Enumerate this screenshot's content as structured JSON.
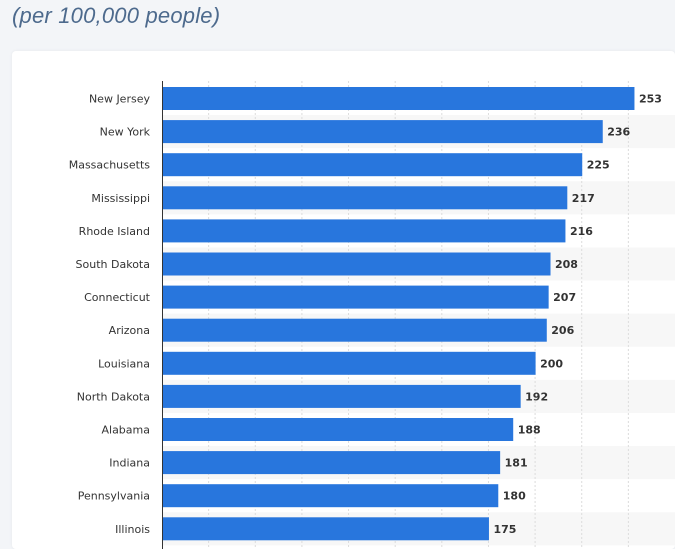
{
  "header": {
    "subtitle": "(per 100,000 people)"
  },
  "chart_data": {
    "type": "bar",
    "orientation": "horizontal",
    "title": "",
    "subtitle": "(per 100,000 people)",
    "xlabel": "",
    "ylabel": "",
    "xlim": [
      0,
      275
    ],
    "grid": true,
    "categories": [
      "New Jersey",
      "New York",
      "Massachusetts",
      "Mississippi",
      "Rhode Island",
      "South Dakota",
      "Connecticut",
      "Arizona",
      "Louisiana",
      "North Dakota",
      "Alabama",
      "Indiana",
      "Pennsylvania",
      "Illinois"
    ],
    "values": [
      253,
      236,
      225,
      217,
      216,
      208,
      207,
      206,
      200,
      192,
      188,
      181,
      180,
      175
    ],
    "bar_color": "#2876dd"
  }
}
